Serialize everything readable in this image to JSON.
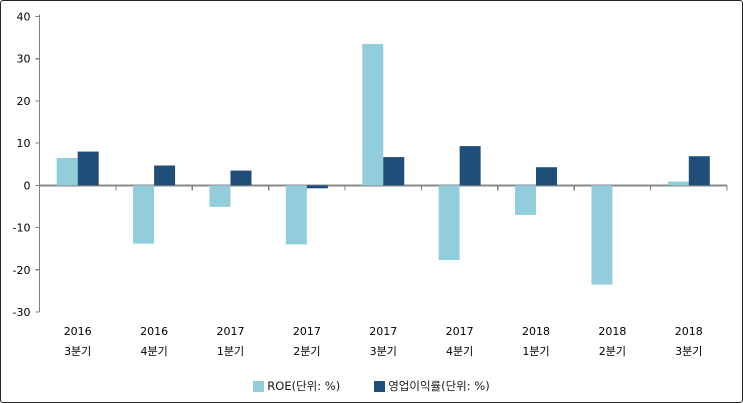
{
  "chart_data": {
    "type": "bar",
    "title": "",
    "xlabel": "",
    "ylabel": "",
    "categories": [
      [
        "2016",
        "3분기"
      ],
      [
        "2016",
        "4분기"
      ],
      [
        "2017",
        "1분기"
      ],
      [
        "2017",
        "2분기"
      ],
      [
        "2017",
        "3분기"
      ],
      [
        "2017",
        "4분기"
      ],
      [
        "2018",
        "1분기"
      ],
      [
        "2018",
        "2분기"
      ],
      [
        "2018",
        "3분기"
      ]
    ],
    "series": [
      {
        "name": "ROE(단위: %)",
        "color": "#92CDDC",
        "values": [
          6.5,
          -13.8,
          -5.1,
          -14.0,
          33.5,
          -17.7,
          -7.0,
          -23.5,
          0.9
        ]
      },
      {
        "name": "영업이익률(단위: %)",
        "color": "#1F4E78",
        "values": [
          8.0,
          4.7,
          3.5,
          -0.7,
          6.7,
          9.3,
          4.3,
          0.0,
          6.9
        ]
      }
    ],
    "ylim": [
      -30,
      40
    ],
    "ytick_step": 10,
    "yticks": [
      40,
      30,
      20,
      10,
      0,
      -10,
      -20,
      -30
    ],
    "grid": false,
    "legend_position": "bottom",
    "axis_color": "#808080",
    "zero_line_color": "#898989",
    "text_color": "#000000"
  }
}
